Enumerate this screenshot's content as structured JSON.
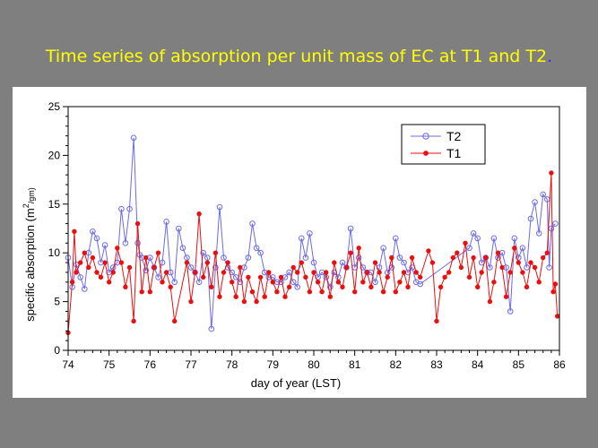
{
  "slide": {
    "title": "Time series of absorption per unit mass of EC at T1 and T2"
  },
  "chart_data": {
    "type": "line",
    "title": "",
    "xlabel": "day of year (LST)",
    "ylabel": "specific absorption (m²/gm)",
    "ylabel_main": "specific absorption (m",
    "ylabel_sup": "2",
    "ylabel_sub": "/gm)",
    "xlim": [
      74,
      86
    ],
    "ylim": [
      0,
      25
    ],
    "xticks": [
      "74",
      "75",
      "76",
      "77",
      "78",
      "79",
      "80",
      "81",
      "82",
      "83",
      "84",
      "85",
      "86"
    ],
    "yticks": [
      "0",
      "5",
      "10",
      "15",
      "20",
      "25"
    ],
    "grid": false,
    "legend_position": "top-right",
    "series": [
      {
        "name": "T2",
        "color": "#6b6bea",
        "marker": "open-circle",
        "x": [
          74.0,
          74.1,
          74.2,
          74.3,
          74.4,
          74.5,
          74.6,
          74.7,
          74.8,
          74.9,
          75.0,
          75.1,
          75.2,
          75.3,
          75.4,
          75.5,
          75.6,
          75.7,
          75.75,
          75.8,
          75.9,
          76.0,
          76.1,
          76.2,
          76.3,
          76.4,
          76.5,
          76.6,
          76.7,
          76.8,
          76.9,
          77.0,
          77.1,
          77.2,
          77.3,
          77.4,
          77.5,
          77.6,
          77.7,
          77.8,
          77.9,
          78.0,
          78.1,
          78.2,
          78.3,
          78.4,
          78.5,
          78.6,
          78.7,
          78.8,
          78.9,
          79.0,
          79.1,
          79.2,
          79.3,
          79.4,
          79.5,
          79.6,
          79.7,
          79.8,
          79.9,
          80.0,
          80.1,
          80.2,
          80.3,
          80.4,
          80.5,
          80.6,
          80.7,
          80.8,
          80.9,
          81.0,
          81.1,
          81.2,
          81.3,
          81.4,
          81.5,
          81.6,
          81.7,
          81.8,
          81.9,
          82.0,
          82.1,
          82.2,
          82.3,
          82.4,
          82.5,
          82.6,
          83.8,
          83.9,
          84.0,
          84.1,
          84.2,
          84.3,
          84.4,
          84.5,
          84.6,
          84.7,
          84.8,
          84.9,
          85.0,
          85.1,
          85.2,
          85.3,
          85.4,
          85.5,
          85.6,
          85.7,
          85.75,
          85.8,
          85.9
        ],
        "y": [
          9.5,
          6.5,
          8.8,
          7.5,
          6.3,
          10.0,
          12.2,
          11.5,
          9.0,
          10.8,
          8.0,
          8.5,
          9.0,
          14.5,
          11.0,
          14.5,
          21.8,
          11.0,
          9.8,
          9.5,
          8.2,
          9.5,
          8.5,
          7.5,
          9.0,
          13.2,
          8.0,
          7.0,
          12.5,
          10.5,
          9.5,
          8.5,
          8.0,
          7.0,
          10.0,
          9.5,
          2.2,
          8.5,
          14.7,
          9.5,
          8.5,
          8.0,
          7.5,
          7.0,
          8.5,
          9.5,
          13.0,
          10.5,
          10.0,
          8.0,
          7.5,
          7.5,
          7.0,
          7.0,
          7.5,
          8.0,
          7.0,
          6.5,
          11.5,
          9.5,
          12.0,
          9.0,
          7.5,
          8.0,
          7.5,
          6.5,
          8.0,
          7.5,
          9.0,
          8.5,
          12.5,
          8.5,
          9.5,
          8.5,
          8.0,
          8.0,
          7.0,
          8.5,
          10.5,
          8.0,
          8.5,
          11.5,
          9.5,
          9.0,
          8.0,
          8.5,
          7.0,
          6.8,
          10.5,
          12.0,
          11.5,
          9.0,
          9.5,
          8.5,
          11.5,
          9.5,
          10.0,
          8.5,
          4.0,
          11.5,
          9.5,
          10.5,
          8.5,
          13.5,
          15.2,
          12.0,
          16.0,
          15.5,
          8.5,
          12.5,
          13.0
        ]
      },
      {
        "name": "T1",
        "color": "#e81010",
        "marker": "filled-circle",
        "x": [
          74.0,
          74.1,
          74.15,
          74.2,
          74.3,
          74.4,
          74.5,
          74.6,
          74.7,
          74.8,
          74.9,
          75.0,
          75.1,
          75.2,
          75.3,
          75.4,
          75.5,
          75.6,
          75.7,
          75.8,
          75.9,
          76.0,
          76.1,
          76.2,
          76.3,
          76.4,
          76.5,
          76.6,
          76.9,
          77.0,
          77.1,
          77.2,
          77.3,
          77.4,
          77.5,
          77.6,
          77.7,
          77.8,
          77.9,
          78.0,
          78.1,
          78.2,
          78.3,
          78.4,
          78.5,
          78.6,
          78.7,
          78.8,
          78.9,
          79.0,
          79.1,
          79.2,
          79.3,
          79.4,
          79.5,
          79.6,
          79.7,
          79.8,
          79.9,
          80.0,
          80.1,
          80.2,
          80.3,
          80.4,
          80.5,
          80.6,
          80.7,
          80.8,
          80.9,
          81.0,
          81.1,
          81.2,
          81.3,
          81.4,
          81.5,
          81.6,
          81.7,
          81.8,
          81.9,
          82.0,
          82.1,
          82.2,
          82.3,
          82.4,
          82.5,
          82.6,
          82.8,
          82.9,
          83.0,
          83.1,
          83.2,
          83.3,
          83.4,
          83.5,
          83.6,
          83.7,
          83.8,
          83.9,
          84.0,
          84.1,
          84.2,
          84.3,
          84.4,
          84.5,
          84.6,
          84.7,
          84.8,
          84.9,
          85.0,
          85.1,
          85.2,
          85.3,
          85.4,
          85.5,
          85.6,
          85.7,
          85.8,
          85.85,
          85.9,
          85.95
        ],
        "y": [
          1.8,
          7.0,
          12.2,
          8.0,
          9.0,
          10.0,
          8.5,
          9.5,
          8.0,
          7.5,
          9.0,
          7.0,
          8.0,
          10.5,
          9.0,
          6.5,
          8.5,
          3.0,
          13.0,
          6.0,
          9.5,
          6.0,
          8.5,
          10.0,
          7.0,
          8.0,
          6.5,
          3.0,
          9.0,
          5.0,
          8.0,
          14.0,
          7.5,
          9.0,
          6.5,
          10.0,
          5.5,
          8.0,
          9.0,
          7.0,
          5.5,
          8.5,
          5.0,
          7.5,
          6.0,
          5.0,
          7.5,
          5.5,
          8.0,
          7.0,
          6.0,
          7.5,
          5.5,
          6.5,
          8.5,
          8.0,
          9.0,
          7.5,
          6.0,
          8.0,
          7.0,
          6.0,
          8.0,
          5.5,
          9.0,
          7.0,
          6.5,
          8.5,
          10.0,
          6.0,
          10.5,
          7.0,
          8.0,
          6.5,
          9.0,
          8.0,
          6.0,
          7.5,
          9.5,
          6.0,
          7.0,
          8.0,
          6.5,
          9.5,
          8.0,
          7.5,
          10.2,
          9.0,
          3.0,
          6.5,
          7.5,
          8.0,
          9.5,
          10.0,
          8.5,
          11.0,
          7.5,
          9.5,
          6.5,
          8.0,
          9.5,
          5.0,
          7.0,
          10.0,
          8.5,
          5.5,
          8.0,
          10.5,
          9.0,
          8.0,
          6.5,
          9.0,
          8.5,
          7.0,
          9.5,
          10.0,
          18.2,
          6.0,
          6.8,
          3.5
        ]
      }
    ]
  }
}
